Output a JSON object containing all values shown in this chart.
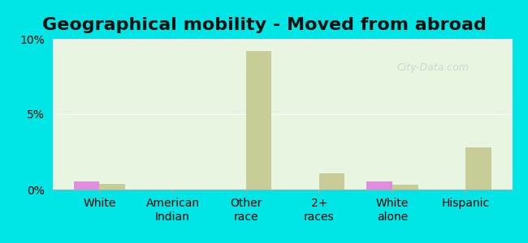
{
  "title": "Geographical mobility - Moved from abroad",
  "categories": [
    "White",
    "American\nIndian",
    "Other\nrace",
    "2+\nraces",
    "White\nalone",
    "Hispanic"
  ],
  "kulm_values": [
    0.55,
    0.0,
    0.0,
    0.0,
    0.55,
    0.0
  ],
  "nd_values": [
    0.35,
    0.0,
    9.2,
    1.05,
    0.3,
    2.8
  ],
  "kulm_color": "#e08de0",
  "nd_color": "#c8cc96",
  "bar_width": 0.35,
  "ylim": [
    0,
    10
  ],
  "yticks": [
    0,
    5,
    10
  ],
  "ytick_labels": [
    "0%",
    "5%",
    "10%"
  ],
  "background_color": "#e8f5e0",
  "outer_background": "#00e5e5",
  "title_fontsize": 16,
  "tick_fontsize": 10,
  "legend_fontsize": 11
}
